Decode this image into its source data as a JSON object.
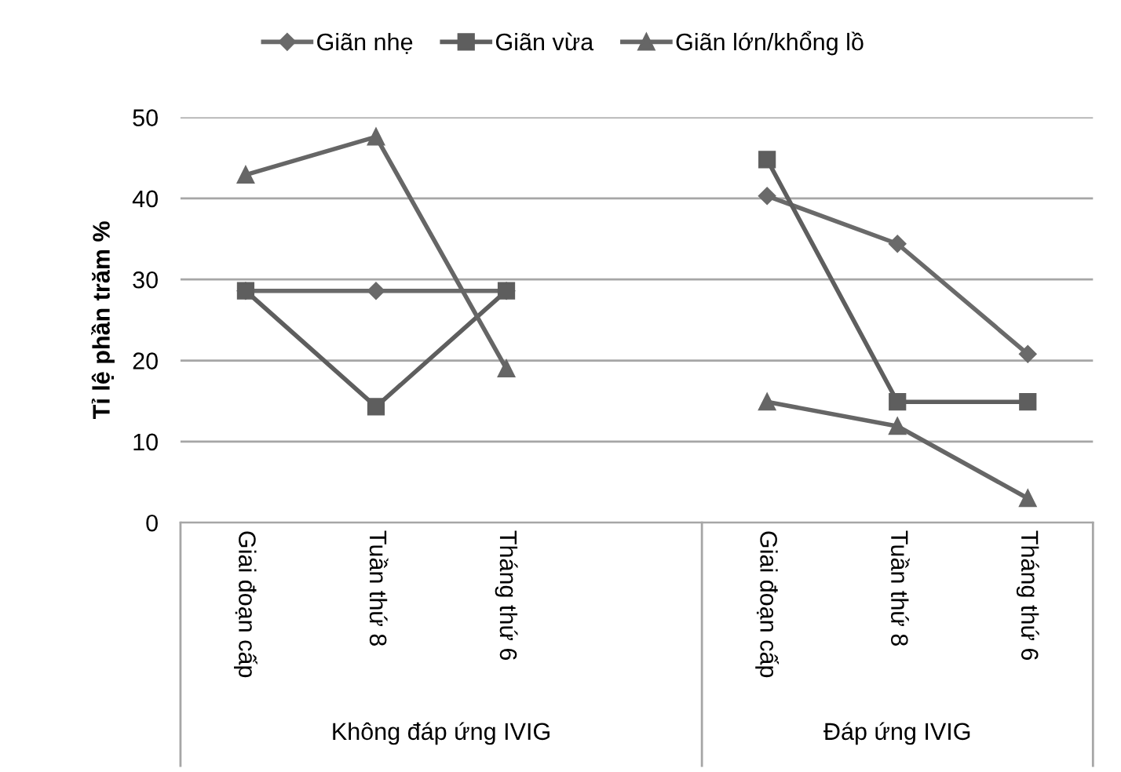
{
  "chart_data": {
    "type": "line",
    "ylabel": "Tỉ lệ phần trăm %",
    "categories": [
      "Giai đoạn cấp",
      "Tuần thứ 8",
      "Tháng thứ 6",
      null,
      "Giai đoạn cấp",
      "Tuần thứ 8",
      "Tháng thứ 6"
    ],
    "annotations": [
      "Không đáp ứng IVIG",
      "Đáp ứng IVIG"
    ],
    "series": [
      {
        "name": "Giãn nhẹ",
        "color": "#6a6a6a",
        "marker": "diamond",
        "values": [
          28.6,
          28.6,
          28.6,
          null,
          40.3,
          34.4,
          20.8
        ]
      },
      {
        "name": "Giãn vừa",
        "color": "#5e5e5e",
        "marker": "square",
        "values": [
          28.6,
          14.3,
          28.6,
          null,
          44.8,
          14.9,
          14.9
        ]
      },
      {
        "name": "Giãn lớn/khổng lồ",
        "color": "#666666",
        "marker": "triangle",
        "values": [
          42.9,
          47.6,
          19.0,
          null,
          14.9,
          11.9,
          3.0
        ]
      }
    ],
    "ylim": [
      0,
      50
    ],
    "yticks": [
      0,
      10,
      20,
      30,
      40,
      50
    ],
    "grid": "y",
    "legend": "top",
    "line_style": "solid"
  }
}
